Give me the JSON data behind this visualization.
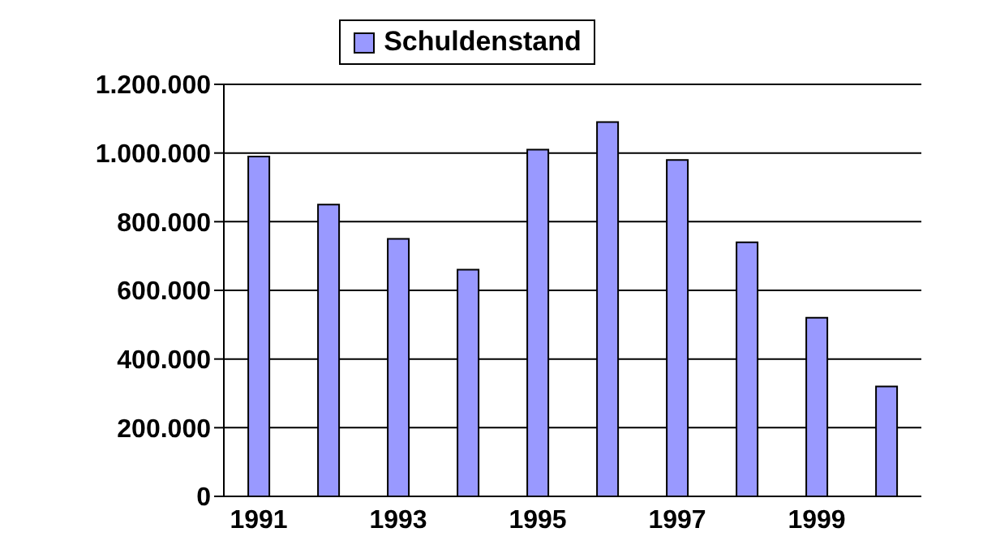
{
  "chart_data": {
    "type": "bar",
    "categories": [
      "1991",
      null,
      "1993",
      null,
      "1995",
      null,
      "1997",
      null,
      "1999",
      null
    ],
    "series": [
      {
        "name": "Schuldenstand",
        "color": "#9999ff",
        "values": [
          990000,
          850000,
          750000,
          660000,
          1010000,
          1090000,
          980000,
          740000,
          520000,
          320000
        ]
      }
    ],
    "ylim": [
      0,
      1200000
    ],
    "yticks": [
      {
        "value": 0,
        "label": "0"
      },
      {
        "value": 200000,
        "label": "200.000"
      },
      {
        "value": 400000,
        "label": "400.000"
      },
      {
        "value": 600000,
        "label": "600.000"
      },
      {
        "value": 800000,
        "label": "800.000"
      },
      {
        "value": 1000000,
        "label": "1.000.000"
      },
      {
        "value": 1200000,
        "label": "1.200.000"
      }
    ],
    "grid": "y",
    "legend": "top"
  }
}
